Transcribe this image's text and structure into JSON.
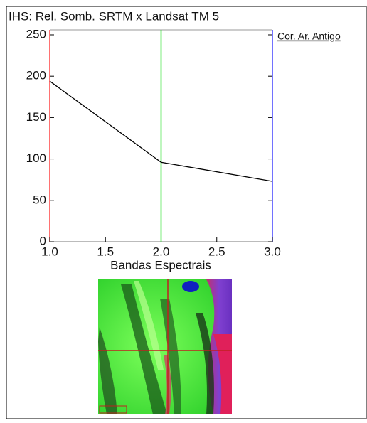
{
  "chart_data": {
    "type": "line",
    "title": "IHS: Rel. Somb. SRTM x Landsat TM 5",
    "x_label": "Bandas Espectrais",
    "x": [
      1,
      2,
      3
    ],
    "series": [
      {
        "name": "Cor. Ar. Antigo",
        "color": "#000000",
        "values": [
          194,
          96,
          73
        ]
      }
    ],
    "xlim": [
      1,
      3
    ],
    "xticks": [
      {
        "value": 1,
        "label": "1.0"
      },
      {
        "value": 1.5,
        "label": "1.5"
      },
      {
        "value": 2,
        "label": "2.0"
      },
      {
        "value": 2.5,
        "label": "2.5"
      },
      {
        "value": 3,
        "label": "3.0"
      }
    ],
    "ylim": [
      0,
      256
    ],
    "yticks": [
      0,
      50,
      100,
      150,
      200,
      250
    ],
    "cursor_x": 2,
    "cursor_color": "#00dd00",
    "left_axis_color": "#ff4444",
    "right_axis_color": "#4444ff"
  }
}
